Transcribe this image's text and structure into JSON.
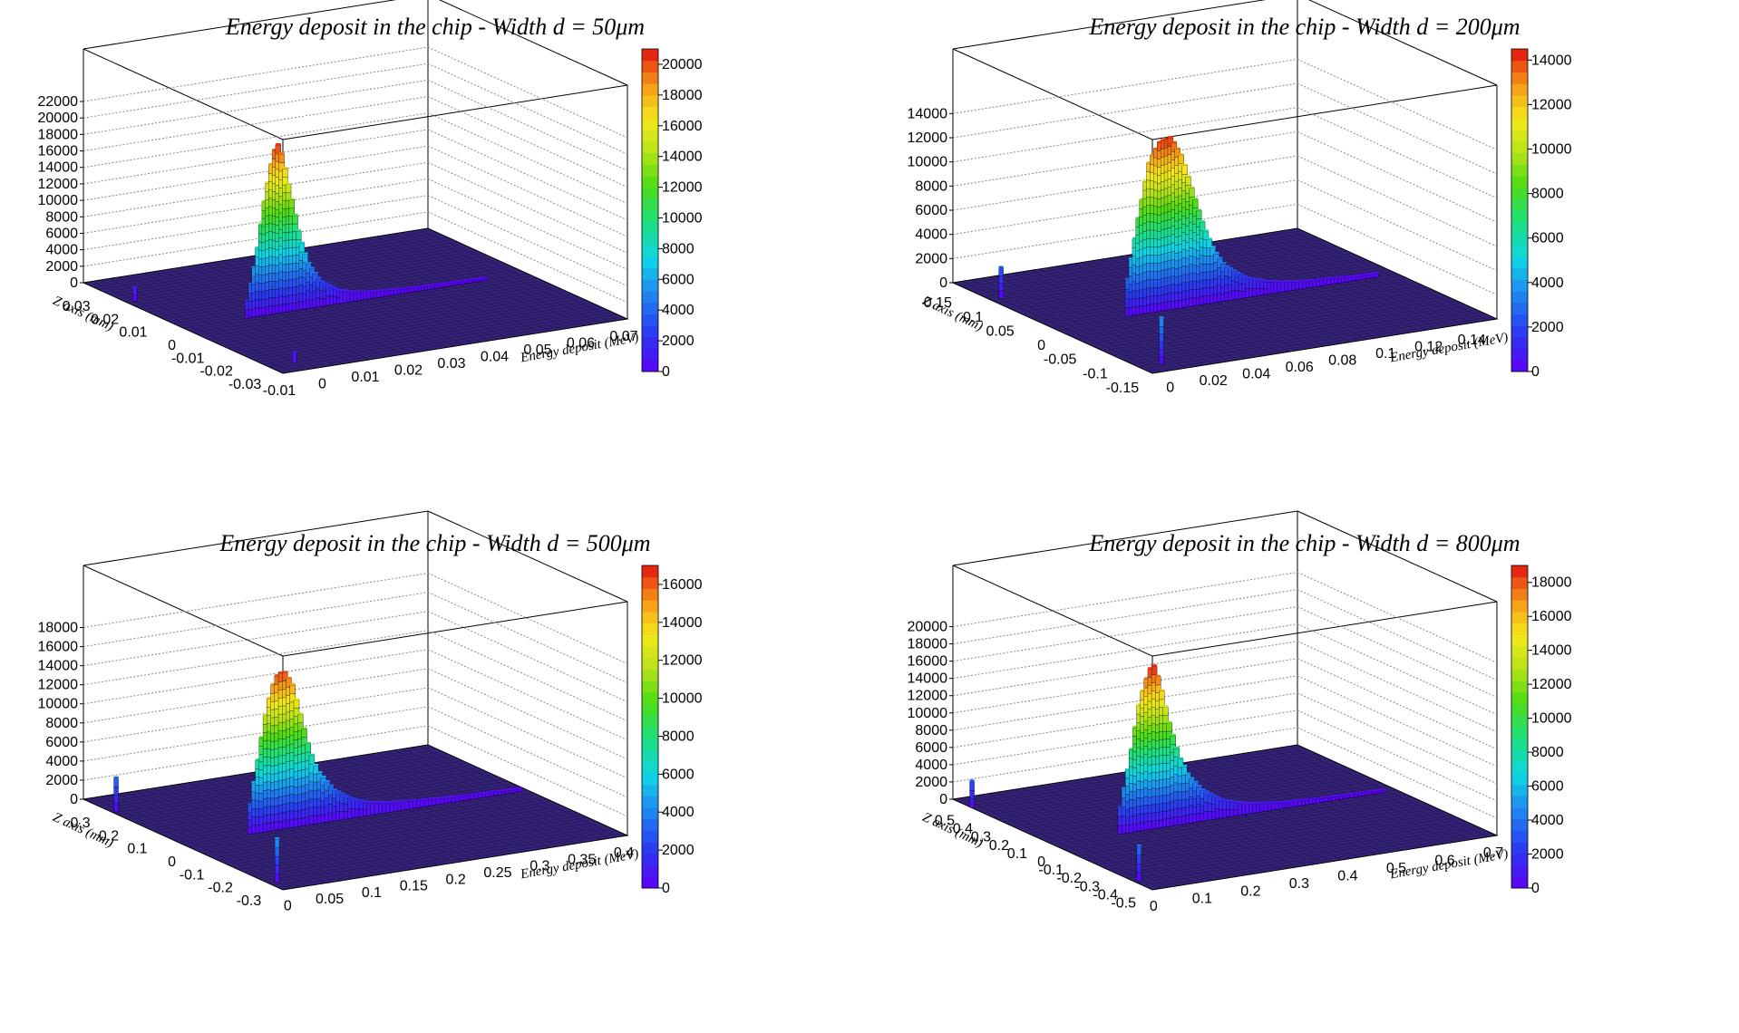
{
  "chart_data": [
    {
      "type": "bar",
      "variant": "3d-lego-histogram",
      "title": "Energy deposit in the chip - Width d = 50μm",
      "xlabel": "Energy deposit (MeV)",
      "ylabel": "Z axis (mm)",
      "xlim": [
        -0.01,
        0.07
      ],
      "ylim": [
        -0.035,
        0.035
      ],
      "zlim": [
        0,
        22000
      ],
      "x_ticks": [
        "-0.01",
        "0",
        "0.01",
        "0.02",
        "0.03",
        "0.04",
        "0.05",
        "0.06",
        "0.07"
      ],
      "y_ticks": [
        "0.03",
        "0.02",
        "0.01",
        "0",
        "-0.01",
        "-0.02",
        "-0.03"
      ],
      "z_ticks": [
        "0",
        "2000",
        "4000",
        "6000",
        "8000",
        "10000",
        "12000",
        "14000",
        "16000",
        "18000",
        "20000",
        "22000"
      ],
      "palette_ticks": [
        "0",
        "2000",
        "4000",
        "6000",
        "8000",
        "10000",
        "12000",
        "14000",
        "16000",
        "18000",
        "20000"
      ],
      "palette_max": 21000,
      "peak": {
        "x": 0.012,
        "value": 20500
      },
      "series": [
        {
          "x": [
            0.005,
            0.007,
            0.009,
            0.011,
            0.012,
            0.013,
            0.015,
            0.017,
            0.019,
            0.022,
            0.026,
            0.03,
            0.035,
            0.04,
            0.045,
            0.05,
            0.055,
            0.06
          ],
          "values": [
            2000,
            7000,
            14000,
            19500,
            20500,
            19000,
            14000,
            9000,
            5500,
            3000,
            1600,
            1000,
            700,
            500,
            400,
            300,
            250,
            200
          ]
        }
      ],
      "outliers": [
        {
          "x": -0.008,
          "y": 0.02,
          "value": 1500
        },
        {
          "x": -0.004,
          "y": -0.03,
          "value": 1200
        }
      ]
    },
    {
      "type": "bar",
      "variant": "3d-lego-histogram",
      "title": "Energy deposit in the chip - Width d = 200μm",
      "xlabel": "Energy deposit (MeV)",
      "ylabel": "Z axis (mm)",
      "xlim": [
        -0.01,
        0.15
      ],
      "ylim": [
        -0.16,
        0.16
      ],
      "zlim": [
        0,
        15000
      ],
      "x_ticks": [
        "0",
        "0.02",
        "0.04",
        "0.06",
        "0.08",
        "0.1",
        "0.12",
        "0.14"
      ],
      "y_ticks": [
        "0.15",
        "0.1",
        "0.05",
        "0",
        "-0.05",
        "-0.1",
        "-0.15"
      ],
      "z_ticks": [
        "0",
        "2000",
        "4000",
        "6000",
        "8000",
        "10000",
        "12000",
        "14000"
      ],
      "palette_ticks": [
        "0",
        "2000",
        "4000",
        "6000",
        "8000",
        "10000",
        "12000",
        "14000"
      ],
      "palette_max": 14500,
      "peak": {
        "x": 0.045,
        "value": 14200
      },
      "series": [
        {
          "x": [
            0.025,
            0.03,
            0.035,
            0.04,
            0.045,
            0.05,
            0.055,
            0.06,
            0.065,
            0.07,
            0.08,
            0.09,
            0.1,
            0.11,
            0.12,
            0.13,
            0.14
          ],
          "values": [
            3000,
            8000,
            12500,
            14000,
            14200,
            12500,
            9500,
            6500,
            4300,
            2900,
            1600,
            1000,
            700,
            500,
            400,
            300,
            250
          ]
        }
      ],
      "outliers": [
        {
          "x": -0.005,
          "y": 0.1,
          "value": 2500
        },
        {
          "x": 0.0,
          "y": -0.14,
          "value": 3800
        }
      ]
    },
    {
      "type": "bar",
      "variant": "3d-lego-histogram",
      "title": "Energy deposit in the chip - Width d = 500μm",
      "xlabel": "Energy deposit (MeV)",
      "ylabel": "Z axis (mm)",
      "xlim": [
        -0.01,
        0.4
      ],
      "ylim": [
        -0.35,
        0.35
      ],
      "zlim": [
        0,
        19000
      ],
      "x_ticks": [
        "0",
        "0.05",
        "0.1",
        "0.15",
        "0.2",
        "0.25",
        "0.3",
        "0.35",
        "0.4"
      ],
      "y_ticks": [
        "0.3",
        "0.2",
        "0.1",
        "0",
        "-0.1",
        "-0.2",
        "-0.3"
      ],
      "z_ticks": [
        "0",
        "2000",
        "4000",
        "6000",
        "8000",
        "10000",
        "12000",
        "14000",
        "16000",
        "18000"
      ],
      "palette_ticks": [
        "0",
        "2000",
        "4000",
        "6000",
        "8000",
        "10000",
        "12000",
        "14000",
        "16000"
      ],
      "palette_max": 17000,
      "peak": {
        "x": 0.11,
        "value": 16500
      },
      "series": [
        {
          "x": [
            0.07,
            0.08,
            0.09,
            0.1,
            0.11,
            0.12,
            0.13,
            0.14,
            0.15,
            0.17,
            0.19,
            0.21,
            0.24,
            0.27,
            0.3,
            0.33,
            0.36,
            0.39
          ],
          "values": [
            3000,
            8000,
            13000,
            16000,
            16500,
            15000,
            11500,
            8000,
            5500,
            3200,
            2000,
            1300,
            900,
            700,
            500,
            400,
            300,
            250
          ]
        }
      ],
      "outliers": [
        {
          "x": -0.005,
          "y": 0.25,
          "value": 3500
        },
        {
          "x": 0.0,
          "y": -0.3,
          "value": 4500
        }
      ]
    },
    {
      "type": "bar",
      "variant": "3d-lego-histogram",
      "title": "Energy deposit in the chip - Width d = 800μm",
      "xlabel": "Energy deposit (MeV)",
      "ylabel": "Z axis (mm)",
      "xlim": [
        -0.01,
        0.7
      ],
      "ylim": [
        -0.55,
        0.55
      ],
      "zlim": [
        0,
        21000
      ],
      "x_ticks": [
        "0",
        "0.1",
        "0.2",
        "0.3",
        "0.4",
        "0.5",
        "0.6",
        "0.7"
      ],
      "y_ticks": [
        "0.5",
        "0.4",
        "0.3",
        "0.2",
        "0.1",
        "0",
        "-0.1",
        "-0.2",
        "-0.3",
        "-0.4",
        "-0.5"
      ],
      "z_ticks": [
        "0",
        "2000",
        "4000",
        "6000",
        "8000",
        "10000",
        "12000",
        "14000",
        "16000",
        "18000",
        "20000"
      ],
      "palette_ticks": [
        "0",
        "2000",
        "4000",
        "6000",
        "8000",
        "10000",
        "12000",
        "14000",
        "16000",
        "18000"
      ],
      "palette_max": 19000,
      "peak": {
        "x": 0.2,
        "value": 18800
      },
      "series": [
        {
          "x": [
            0.13,
            0.15,
            0.17,
            0.19,
            0.2,
            0.21,
            0.23,
            0.25,
            0.27,
            0.3,
            0.34,
            0.38,
            0.42,
            0.47,
            0.52,
            0.57,
            0.62,
            0.67
          ],
          "values": [
            3000,
            8500,
            15000,
            18500,
            18800,
            17000,
            12000,
            8000,
            5500,
            3500,
            2000,
            1300,
            900,
            600,
            450,
            350,
            280,
            220
          ]
        }
      ],
      "outliers": [
        {
          "x": -0.008,
          "y": 0.45,
          "value": 3000
        },
        {
          "x": 0.0,
          "y": -0.45,
          "value": 4000
        }
      ]
    }
  ]
}
